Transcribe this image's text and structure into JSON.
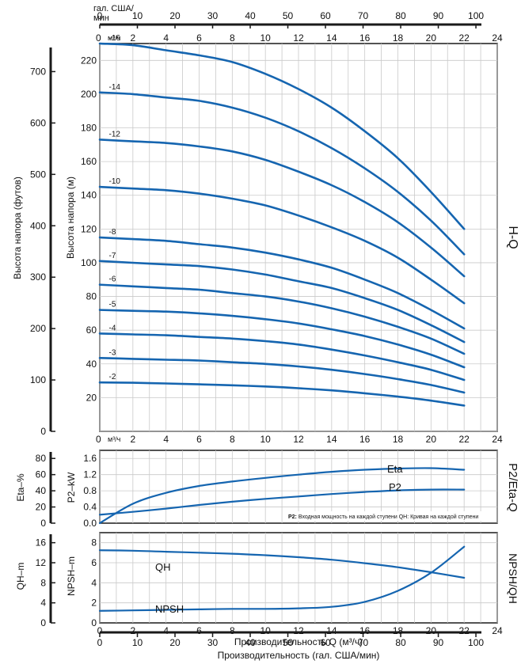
{
  "colors": {
    "curve": "#1565b0",
    "grid": "#c9c9c9",
    "frame": "#1a1a1a",
    "axis": "#1a1a1a"
  },
  "top_axis": {
    "gpm_unit_line1": "гал. США/",
    "gpm_unit_line2": "мин",
    "gpm_ticks": [
      "0",
      "10",
      "20",
      "30",
      "40",
      "50",
      "60",
      "70",
      "80",
      "90",
      "100"
    ],
    "m3h_unit": "м³/ч",
    "m3h_ticks": [
      "0",
      "2",
      "4",
      "6",
      "8",
      "10",
      "12",
      "14",
      "16",
      "18",
      "20",
      "22",
      "24"
    ]
  },
  "hq_panel": {
    "side_label": "H-Q",
    "ylabel_m": "Высота напора (м)",
    "ylabel_ft": "Высота напора (футов)",
    "y_m_ticks": [
      "0",
      "20",
      "40",
      "60",
      "80",
      "100",
      "120",
      "140",
      "160",
      "180",
      "200",
      "220"
    ],
    "y_ft_ticks": [
      "0",
      "100",
      "200",
      "300",
      "400",
      "500",
      "600",
      "700"
    ],
    "bottom_unit": "м³/ч",
    "bottom_ticks": [
      "0",
      "2",
      "4",
      "6",
      "8",
      "10",
      "12",
      "14",
      "16",
      "18",
      "20",
      "22",
      "24"
    ]
  },
  "eta_panel": {
    "side_label": "P2/Eta-Q",
    "ylabel_p2": "P2–kW",
    "ylabel_eta": "Eta–%",
    "p2_ticks": [
      "0.0",
      "0.4",
      "0.8",
      "1.2",
      "1.6"
    ],
    "eta_ticks": [
      "0",
      "20",
      "40",
      "60",
      "80"
    ],
    "eta_curve_label": "Eta",
    "p2_curve_label": "P2",
    "note_bold": "P2:",
    "note_text": " Входная мощность на каждой ступени QH: Кривая на каждой ступени"
  },
  "npsh_panel": {
    "side_label": "NPSH/QH",
    "ylabel_npsh": "NPSH–m",
    "ylabel_qh": "QH–m",
    "npsh_ticks": [
      "0",
      "2",
      "4",
      "6",
      "8"
    ],
    "qh_ticks": [
      "0",
      "4",
      "8",
      "12",
      "16"
    ],
    "qh_curve_label": "QH",
    "npsh_curve_label": "NPSH",
    "x_ticks": [
      "0",
      "2",
      "4",
      "6",
      "8",
      "10",
      "12",
      "14",
      "16",
      "18",
      "20",
      "22",
      "24"
    ],
    "xlabel": "Производительность Q (м³/ч)"
  },
  "bottom_axis": {
    "ticks": [
      "0",
      "10",
      "20",
      "30",
      "40",
      "50",
      "60",
      "70",
      "80",
      "90",
      "100"
    ],
    "xlabel": "Производительность (гал. США/мин)"
  },
  "chart_data": [
    {
      "type": "line",
      "panel": "H-Q",
      "x_unit": "м³/ч",
      "xlim": [
        0,
        24
      ],
      "ylim": [
        0,
        230
      ],
      "xlabel": "",
      "ylabel": "Высота напора (м)",
      "x": [
        0,
        2,
        4,
        6,
        8,
        10,
        12,
        14,
        16,
        18,
        20,
        22
      ],
      "series": [
        {
          "name": "-16",
          "values": [
            230,
            229,
            226,
            223,
            219,
            212,
            203,
            192,
            178,
            162,
            142,
            120
          ]
        },
        {
          "name": "-14",
          "values": [
            201,
            200,
            198,
            196,
            192,
            186,
            178,
            168,
            156,
            142,
            125,
            105
          ]
        },
        {
          "name": "-12",
          "values": [
            173,
            172,
            171,
            169,
            166,
            161,
            154,
            146,
            136,
            124,
            109,
            92
          ]
        },
        {
          "name": "-10",
          "values": [
            145,
            144,
            143,
            141,
            138,
            134,
            128,
            121,
            113,
            103,
            90,
            76
          ]
        },
        {
          "name": "-8",
          "values": [
            115,
            114,
            113,
            111,
            109,
            106,
            102,
            97,
            90,
            82,
            72,
            61
          ]
        },
        {
          "name": "-7",
          "values": [
            101,
            100,
            99,
            98,
            96,
            93,
            89,
            85,
            79,
            72,
            63,
            53
          ]
        },
        {
          "name": "-6",
          "values": [
            87,
            86,
            85,
            84,
            82,
            80,
            77,
            73,
            68,
            62,
            55,
            46
          ]
        },
        {
          "name": "-5",
          "values": [
            72,
            71.5,
            71,
            70,
            68.5,
            66.5,
            64,
            60.5,
            56.5,
            51.5,
            45.5,
            38
          ]
        },
        {
          "name": "-4",
          "values": [
            58,
            57.5,
            57,
            56,
            55,
            53.5,
            51.5,
            48.5,
            45,
            41,
            36.5,
            30.5
          ]
        },
        {
          "name": "-3",
          "values": [
            43.5,
            43,
            42.5,
            42,
            41,
            40,
            38.5,
            36.5,
            34,
            31,
            27.5,
            23
          ]
        },
        {
          "name": "-2",
          "values": [
            29,
            28.8,
            28.4,
            27.9,
            27.3,
            26.6,
            25.6,
            24.3,
            22.6,
            20.6,
            18.2,
            15.3
          ]
        }
      ]
    },
    {
      "type": "line",
      "panel": "P2/Eta-Q",
      "x_unit": "м³/ч",
      "xlim": [
        0,
        24
      ],
      "ylim": [
        0,
        1.8
      ],
      "x": [
        0,
        2,
        4,
        6,
        8,
        10,
        12,
        14,
        16,
        18,
        20,
        22
      ],
      "series": [
        {
          "name": "Eta",
          "values": [
            0,
            0.48,
            0.75,
            0.92,
            1.03,
            1.12,
            1.2,
            1.27,
            1.32,
            1.35,
            1.36,
            1.32
          ]
        },
        {
          "name": "P2",
          "values": [
            0.21,
            0.28,
            0.36,
            0.45,
            0.53,
            0.6,
            0.66,
            0.72,
            0.77,
            0.81,
            0.83,
            0.83
          ]
        }
      ]
    },
    {
      "type": "line",
      "panel": "NPSH/QH",
      "x_unit": "м³/ч",
      "xlim": [
        0,
        24
      ],
      "ylim": [
        0,
        9
      ],
      "x": [
        0,
        2,
        4,
        6,
        8,
        10,
        12,
        14,
        16,
        18,
        20,
        22
      ],
      "series": [
        {
          "name": "QH",
          "values": [
            7.25,
            7.2,
            7.1,
            7.0,
            6.9,
            6.75,
            6.55,
            6.3,
            5.95,
            5.55,
            5.05,
            4.5
          ]
        },
        {
          "name": "NPSH",
          "values": [
            1.2,
            1.25,
            1.3,
            1.35,
            1.4,
            1.4,
            1.45,
            1.6,
            2.1,
            3.2,
            5.0,
            7.6
          ]
        }
      ]
    }
  ]
}
